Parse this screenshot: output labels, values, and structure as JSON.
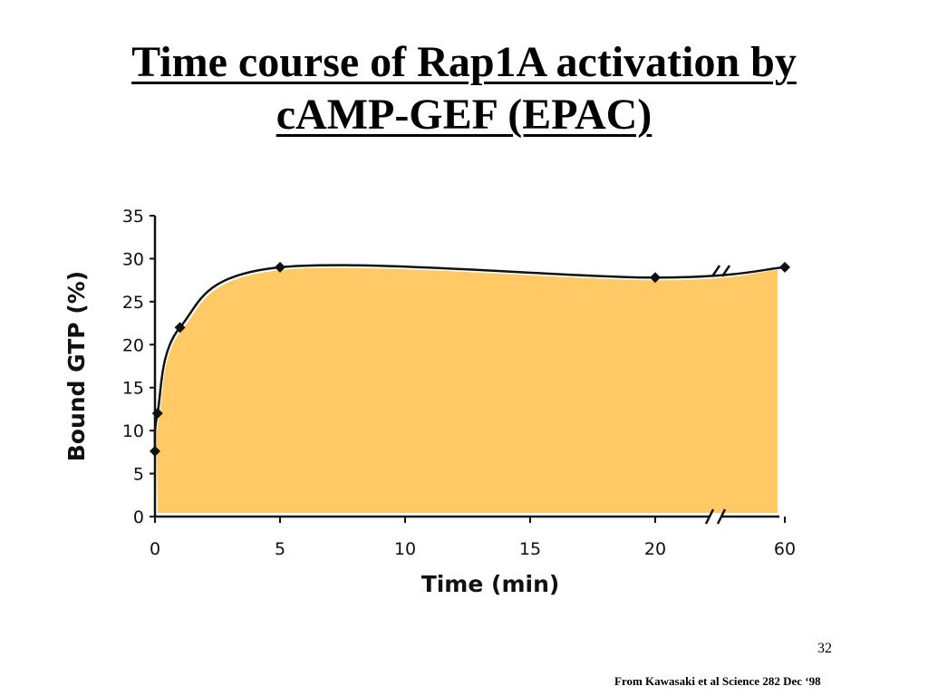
{
  "slide": {
    "title_line1": "Time course of Rap1A activation by",
    "title_line2": "cAMP-GEF (EPAC)",
    "page_number": "32",
    "citation": "From Kawasaki et al  Science 282 Dec ‘98"
  },
  "chart_data": {
    "type": "line",
    "title": "",
    "xlabel": "Time (min)",
    "ylabel": "Bound GTP (%)",
    "x_ticks": [
      "0",
      "5",
      "10",
      "15",
      "20",
      "60"
    ],
    "y_ticks": [
      "0",
      "5",
      "10",
      "15",
      "20",
      "25",
      "30",
      "35"
    ],
    "ylim": [
      0,
      35
    ],
    "axis_break": "between 20 and 60",
    "fill_color": "#FFC965",
    "series": [
      {
        "x": [
          0,
          0.1,
          1,
          5,
          20,
          60
        ],
        "y": [
          7.6,
          12,
          22,
          29,
          27.8,
          29
        ]
      }
    ],
    "grid": false,
    "legend": "none"
  }
}
